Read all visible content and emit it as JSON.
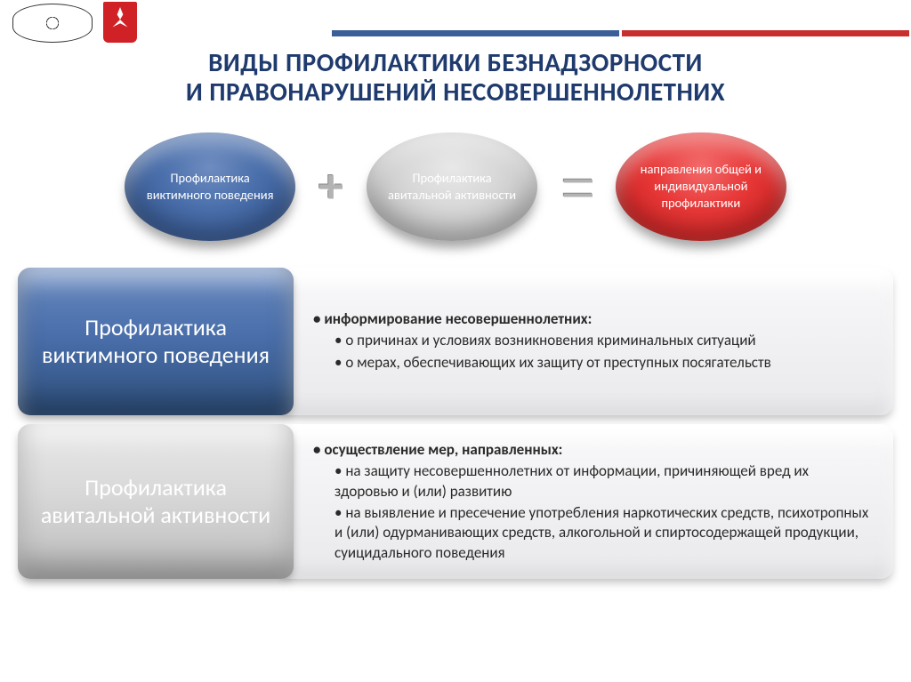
{
  "header": {
    "bar_colors": [
      "#3b5f99",
      "#c83030"
    ],
    "logo_red": "#d02127"
  },
  "title": {
    "line1": "ВИДЫ ПРОФИЛАКТИКИ БЕЗНАДЗОРНОСТИ",
    "line2": "И ПРАВОНАРУШЕНИЙ НЕСОВЕРШЕННОЛЕТНИХ",
    "color": "#1f3a6d",
    "fontsize": 29
  },
  "equation": {
    "left": {
      "text": "Профилактика виктимного поведения",
      "bg": "#3b5f99",
      "text_color": "#ffffff"
    },
    "plus": "+",
    "mid": {
      "text": "Профилактика авитальной активности",
      "bg": "#d0d0d0",
      "text_color": "#ffffff"
    },
    "equals": "=",
    "right": {
      "text": "направления общей и индивидуальной профилактики",
      "bg": "#d82424",
      "text_color": "#ffffff"
    },
    "ellipse_w": 192,
    "ellipse_h": 122
  },
  "sections": [
    {
      "tab": {
        "label": "Профилактика виктимного поведения",
        "variant": "blue",
        "text_color": "#ffffff"
      },
      "panel": {
        "lead": "информирование несовершеннолетних:",
        "subs": [
          "о причинах и условиях возникновения криминальных ситуаций",
          "о мерах, обеспечивающих их защиту от преступных посягательств"
        ]
      }
    },
    {
      "tab": {
        "label": "Профилактика авитальной активности",
        "variant": "gray",
        "text_color": "#ffffff"
      },
      "panel": {
        "lead": "осуществление мер, направленных:",
        "subs": [
          " на защиту несовершеннолетних от информации, причиняющей вред их здоровью и (или) развитию",
          "на выявление и пресечение употребления наркотических средств, психотропных и (или) одурманивающих средств, алкогольной и спиртосодержащей продукции, суицидального поведения"
        ]
      }
    }
  ],
  "style": {
    "panel_bg_top": "#ffffff",
    "panel_bg_bottom": "#e9e9ec",
    "panel_text": "#2a2a2a",
    "panel_fontsize": 17,
    "tab_fontsize": 26,
    "tab_radius": 14
  }
}
